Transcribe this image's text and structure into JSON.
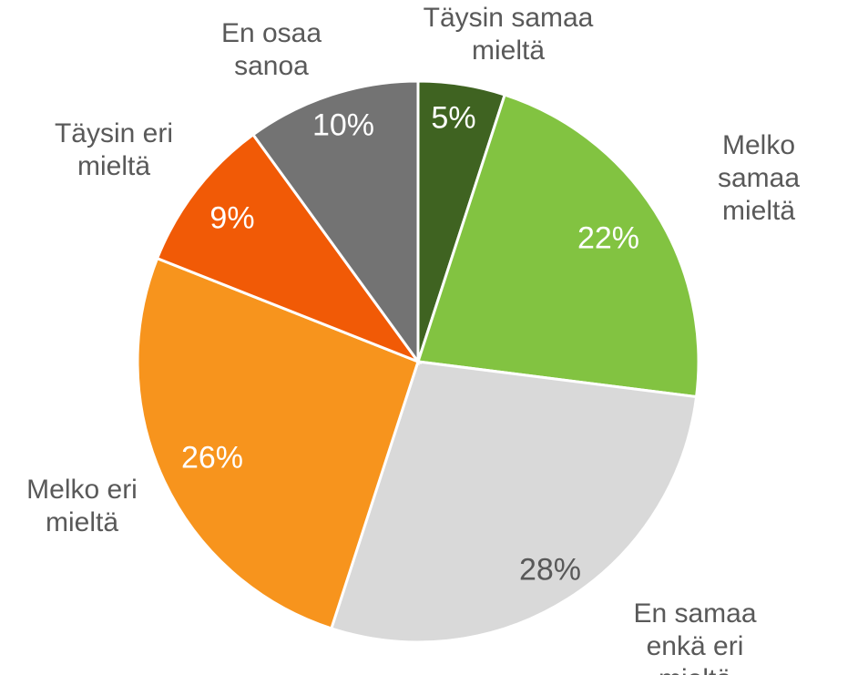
{
  "chart_data": {
    "type": "pie",
    "categories": [
      "Täysin samaa\nmieltä",
      "Melko samaa\nmieltä",
      "En samaa\nenkä eri mieltä",
      "Melko eri\nmieltä",
      "Täysin eri\nmieltä",
      "En osaa\nsanoa"
    ],
    "values": [
      5,
      22,
      28,
      26,
      9,
      10
    ],
    "value_labels": [
      "5%",
      "22%",
      "28%",
      "26%",
      "9%",
      "10%"
    ],
    "colors": [
      "#3f6321",
      "#82c341",
      "#d9d9d9",
      "#f7941d",
      "#f15a06",
      "#737373"
    ]
  }
}
